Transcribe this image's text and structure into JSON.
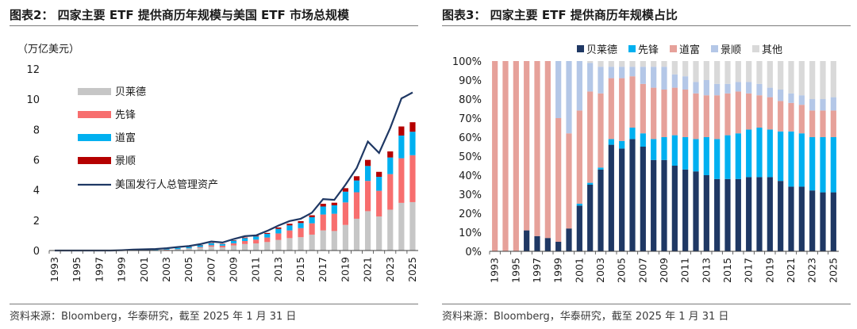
{
  "left": {
    "title": "图表2： 四家主要 ETF 提供商历年规模与美国 ETF 市场总规模",
    "source": "资料来源：Bloomberg，华泰研究，截至 2025 年 1 月 31 日",
    "colors": {
      "blackrock": "#c6c6c6",
      "vanguard": "#f76e6e",
      "ssga": "#00b0f0",
      "invesco": "#b50000",
      "total": "#1f3864"
    },
    "chart_data": {
      "type": "bar",
      "stacked": true,
      "unit_label": "（万亿美元）",
      "ylim": [
        0,
        12
      ],
      "yticks": [
        "0",
        "2",
        "4",
        "6",
        "8",
        "10",
        "12"
      ],
      "x_tick_labels": [
        "1993",
        "1995",
        "1997",
        "1999",
        "2001",
        "2003",
        "2005",
        "2007",
        "2009",
        "2011",
        "2013",
        "2015",
        "2017",
        "2019",
        "2021",
        "2023",
        "2025"
      ],
      "categories": [
        "1993",
        "1994",
        "1995",
        "1996",
        "1997",
        "1998",
        "1999",
        "2000",
        "2001",
        "2002",
        "2003",
        "2004",
        "2005",
        "2006",
        "2007",
        "2008",
        "2009",
        "2010",
        "2011",
        "2012",
        "2013",
        "2014",
        "2015",
        "2016",
        "2017",
        "2018",
        "2019",
        "2020",
        "2021",
        "2022",
        "2023",
        "2024",
        "2025"
      ],
      "series": [
        {
          "name": "贝莱德",
          "values": [
            0,
            0,
            0,
            0,
            0,
            0,
            0,
            0,
            0.01,
            0.02,
            0.05,
            0.08,
            0.12,
            0.18,
            0.26,
            0.21,
            0.34,
            0.43,
            0.47,
            0.56,
            0.7,
            0.82,
            0.88,
            1.05,
            1.33,
            1.29,
            1.69,
            2.1,
            2.6,
            2.25,
            2.7,
            3.15,
            3.2
          ]
        },
        {
          "name": "先锋",
          "values": [
            0,
            0,
            0,
            0,
            0,
            0,
            0,
            0,
            0,
            0,
            0.01,
            0.01,
            0.02,
            0.05,
            0.09,
            0.11,
            0.14,
            0.2,
            0.25,
            0.3,
            0.43,
            0.51,
            0.6,
            0.75,
            1.05,
            1.14,
            1.49,
            1.75,
            2.0,
            1.7,
            2.35,
            2.95,
            3.1
          ]
        },
        {
          "name": "道富",
          "values": [
            0,
            0,
            0,
            0,
            0,
            0,
            0,
            0,
            0.02,
            0.03,
            0.05,
            0.08,
            0.1,
            0.12,
            0.14,
            0.11,
            0.17,
            0.19,
            0.21,
            0.24,
            0.3,
            0.33,
            0.34,
            0.4,
            0.53,
            0.56,
            0.71,
            0.78,
            0.99,
            0.92,
            1.1,
            1.5,
            1.55
          ]
        },
        {
          "name": "景顺",
          "values": [
            0,
            0,
            0,
            0,
            0,
            0,
            0,
            0,
            0,
            0,
            0,
            0,
            0.01,
            0.01,
            0.02,
            0.02,
            0.03,
            0.04,
            0.05,
            0.06,
            0.09,
            0.11,
            0.12,
            0.13,
            0.18,
            0.17,
            0.23,
            0.28,
            0.4,
            0.33,
            0.4,
            0.6,
            0.63
          ]
        }
      ],
      "line": {
        "name": "美国发行人总管理资产",
        "values": [
          0,
          0,
          0,
          0,
          0,
          0,
          0.02,
          0.06,
          0.08,
          0.1,
          0.15,
          0.23,
          0.3,
          0.42,
          0.6,
          0.53,
          0.76,
          0.95,
          1.0,
          1.3,
          1.65,
          1.95,
          2.1,
          2.5,
          3.4,
          3.35,
          4.35,
          5.45,
          7.2,
          6.45,
          8.1,
          10.05,
          10.45
        ]
      }
    }
  },
  "right": {
    "title": "图表3： 四家主要 ETF 提供商历年规模占比",
    "source": "资料来源：Bloomberg，华泰研究，截至 2025 年 1 月 31 日",
    "colors": {
      "blackrock": "#1f3864",
      "ishares_blue": "#00b0f0",
      "vanguard": "#e6a19a",
      "pale": "#b4c7e7",
      "other": "#d9d9d9"
    },
    "chart_data": {
      "type": "bar",
      "stacked": true,
      "percent": true,
      "ylim": [
        0,
        100
      ],
      "yticks": [
        "0%",
        "10%",
        "20%",
        "30%",
        "40%",
        "50%",
        "60%",
        "70%",
        "80%",
        "90%",
        "100%"
      ],
      "categories": [
        "1993",
        "1994",
        "1995",
        "1996",
        "1997",
        "1998",
        "1999",
        "2000",
        "2001",
        "2002",
        "2003",
        "2004",
        "2005",
        "2006",
        "2007",
        "2008",
        "2009",
        "2010",
        "2011",
        "2012",
        "2013",
        "2014",
        "2015",
        "2016",
        "2017",
        "2018",
        "2019",
        "2020",
        "2021",
        "2022",
        "2023",
        "2024",
        "2025"
      ],
      "x_tick_labels": [
        "1993",
        "1995",
        "1997",
        "1999",
        "2001",
        "2003",
        "2005",
        "2007",
        "2009",
        "2011",
        "2013",
        "2015",
        "2017",
        "2019",
        "2021",
        "2023",
        "2025"
      ],
      "legend": [
        "贝莱德",
        "先锋",
        "道富",
        "景顺",
        "其他"
      ],
      "series": [
        {
          "name": "贝莱德",
          "values": [
            0,
            0,
            0,
            11,
            8,
            7,
            5,
            12,
            24,
            35,
            43,
            56,
            54,
            59,
            55,
            48,
            48,
            45,
            43,
            42,
            40,
            38,
            38,
            38,
            39,
            39,
            39,
            37,
            34,
            34,
            32,
            31,
            31
          ]
        },
        {
          "name": "先锋",
          "values": [
            0,
            0,
            0,
            0,
            0,
            0,
            0,
            0,
            1,
            1,
            1,
            3,
            4,
            6,
            7,
            11,
            12,
            16,
            17,
            17,
            20,
            21,
            23,
            24,
            25,
            26,
            25,
            26,
            29,
            28,
            28,
            29,
            29
          ]
        },
        {
          "name": "道富",
          "values": [
            100,
            100,
            100,
            89,
            92,
            93,
            65,
            50,
            49,
            48,
            39,
            32,
            33,
            27,
            26,
            27,
            25,
            25,
            25,
            24,
            22,
            23,
            22,
            22,
            19,
            17,
            17,
            16,
            15,
            15,
            14,
            14,
            14
          ]
        },
        {
          "name": "景顺",
          "values": [
            0,
            0,
            0,
            0,
            0,
            0,
            30,
            38,
            26,
            15,
            14,
            6,
            6,
            5,
            9,
            11,
            12,
            7,
            7,
            6,
            8,
            6,
            5,
            5,
            6,
            6,
            5,
            6,
            5,
            5,
            6,
            6,
            7
          ]
        },
        {
          "name": "其他",
          "values": [
            0,
            0,
            0,
            0,
            0,
            0,
            0,
            0,
            0,
            1,
            3,
            3,
            3,
            3,
            3,
            3,
            3,
            7,
            8,
            11,
            10,
            12,
            12,
            11,
            11,
            12,
            14,
            15,
            17,
            18,
            20,
            20,
            19
          ]
        }
      ]
    }
  }
}
